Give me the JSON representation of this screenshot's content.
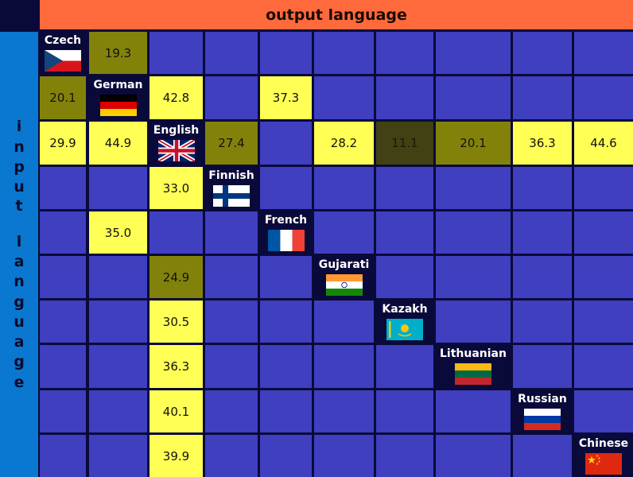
{
  "header": {
    "title": "output language"
  },
  "side_label": "input language",
  "languages": [
    {
      "name": "Czech",
      "flag": "czech-flag-icon"
    },
    {
      "name": "German",
      "flag": "german-flag-icon"
    },
    {
      "name": "English",
      "flag": "uk-flag-icon"
    },
    {
      "name": "Finnish",
      "flag": "finnish-flag-icon"
    },
    {
      "name": "French",
      "flag": "french-flag-icon"
    },
    {
      "name": "Gujarati",
      "flag": "indian-flag-icon"
    },
    {
      "name": "Kazakh",
      "flag": "kazakh-flag-icon"
    },
    {
      "name": "Lithuanian",
      "flag": "lithuanian-flag-icon"
    },
    {
      "name": "Russian",
      "flag": "russian-flag-icon"
    },
    {
      "name": "Chinese",
      "flag": "chinese-flag-icon"
    }
  ],
  "colors": {
    "empty": "#3f3fc0",
    "high": "#ffff55",
    "mid": "#82820a",
    "low": "#414114",
    "header": "#ff6a3c",
    "side": "#0a78d0",
    "background": "#0a0a3a"
  },
  "chart_data": {
    "type": "heatmap",
    "title": "output language",
    "xlabel": "output language",
    "ylabel": "input language",
    "rows": [
      "Czech",
      "German",
      "English",
      "Finnish",
      "French",
      "Gujarati",
      "Kazakh",
      "Lithuanian",
      "Russian",
      "Chinese"
    ],
    "columns": [
      "Czech",
      "German",
      "English",
      "Finnish",
      "French",
      "Gujarati",
      "Kazakh",
      "Lithuanian",
      "Russian",
      "Chinese"
    ],
    "values": [
      [
        null,
        19.3,
        null,
        null,
        null,
        null,
        null,
        null,
        null,
        null
      ],
      [
        20.1,
        null,
        42.8,
        null,
        37.3,
        null,
        null,
        null,
        null,
        null
      ],
      [
        29.9,
        44.9,
        null,
        27.4,
        null,
        28.2,
        11.1,
        20.1,
        36.3,
        44.6
      ],
      [
        null,
        null,
        33.0,
        null,
        null,
        null,
        null,
        null,
        null,
        null
      ],
      [
        null,
        35.0,
        null,
        null,
        null,
        null,
        null,
        null,
        null,
        null
      ],
      [
        null,
        null,
        24.9,
        null,
        null,
        null,
        null,
        null,
        null,
        null
      ],
      [
        null,
        null,
        30.5,
        null,
        null,
        null,
        null,
        null,
        null,
        null
      ],
      [
        null,
        null,
        36.3,
        null,
        null,
        null,
        null,
        null,
        null,
        null
      ],
      [
        null,
        null,
        40.1,
        null,
        null,
        null,
        null,
        null,
        null,
        null
      ],
      [
        null,
        null,
        39.9,
        null,
        null,
        null,
        null,
        null,
        null,
        null
      ]
    ],
    "value_labels": [
      [
        null,
        "19.3",
        null,
        null,
        null,
        null,
        null,
        null,
        null,
        null
      ],
      [
        "20.1",
        null,
        "42.8",
        null,
        "37.3",
        null,
        null,
        null,
        null,
        null
      ],
      [
        "29.9",
        "44.9",
        null,
        "27.4",
        null,
        "28.2",
        "11.1",
        "20.1",
        "36.3",
        "44.6"
      ],
      [
        null,
        null,
        "33.0",
        null,
        null,
        null,
        null,
        null,
        null,
        null
      ],
      [
        null,
        "35.0",
        null,
        null,
        null,
        null,
        null,
        null,
        null,
        null
      ],
      [
        null,
        null,
        "24.9",
        null,
        null,
        null,
        null,
        null,
        null,
        null
      ],
      [
        null,
        null,
        "30.5",
        null,
        null,
        null,
        null,
        null,
        null,
        null
      ],
      [
        null,
        null,
        "36.3",
        null,
        null,
        null,
        null,
        null,
        null,
        null
      ],
      [
        null,
        null,
        "40.1",
        null,
        null,
        null,
        null,
        null,
        null,
        null
      ],
      [
        null,
        null,
        "39.9",
        null,
        null,
        null,
        null,
        null,
        null,
        null
      ]
    ]
  }
}
